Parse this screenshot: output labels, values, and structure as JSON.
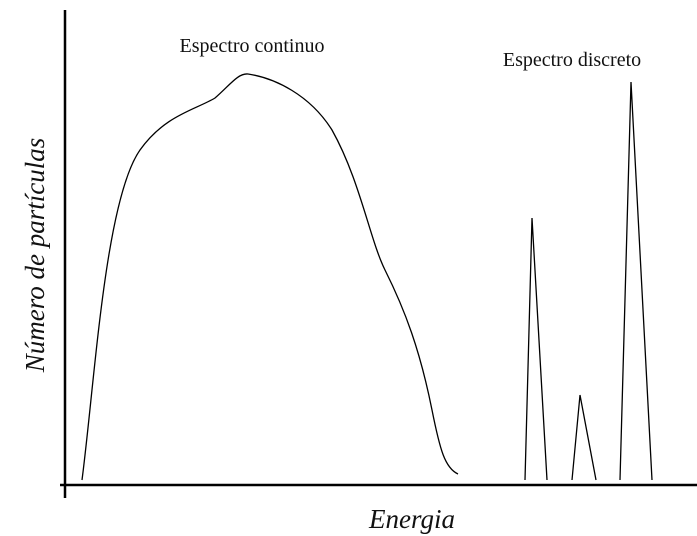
{
  "labels": {
    "continuous": "Espectro continuo",
    "discrete": "Espectro discreto"
  },
  "axes": {
    "y_label": "Número de partículas",
    "x_label": "Energia"
  }
}
